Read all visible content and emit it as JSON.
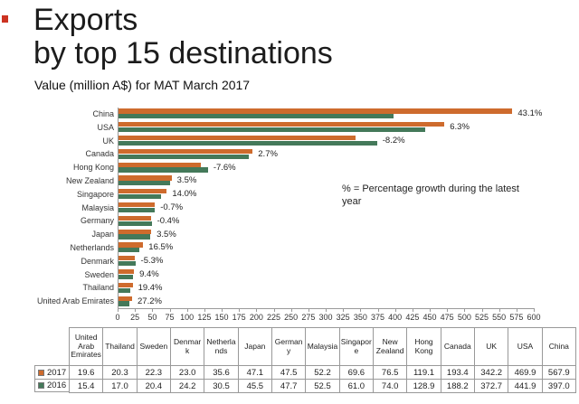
{
  "header": {
    "title_line1": "Exports",
    "title_line2": "by top 15 destinations",
    "subtitle": "Value (million A$) for MAT March 2017"
  },
  "annotation": "% = Percentage growth during the latest year",
  "colors": {
    "series_2017_orange": "#CE6B2D",
    "series_2016_green": "#44795A",
    "red_marker": "#CC3322",
    "axis_grey": "#9A9A9A",
    "table_border_grey": "#999999"
  },
  "chart_data": {
    "type": "bar",
    "orientation": "horizontal",
    "title": "Exports by top 15 destinations",
    "subtitle": "Value (million A$) for MAT March 2017",
    "xlabel": "",
    "ylabel": "",
    "xlim": [
      0,
      600
    ],
    "grid": false,
    "legend_position": "bottom-table",
    "x_ticks": [
      0,
      25,
      50,
      75,
      100,
      125,
      150,
      175,
      200,
      225,
      250,
      275,
      300,
      325,
      350,
      375,
      400,
      425,
      450,
      475,
      500,
      525,
      550,
      575,
      600
    ],
    "categories": [
      "China",
      "USA",
      "UK",
      "Canada",
      "Hong Kong",
      "New Zealand",
      "Singapore",
      "Malaysia",
      "Germany",
      "Japan",
      "Netherlands",
      "Denmark",
      "Sweden",
      "Thailand",
      "United Arab Emirates"
    ],
    "series": [
      {
        "name": "2017",
        "color": "#CE6B2D",
        "values": [
          567.9,
          469.9,
          342.2,
          193.4,
          119.1,
          76.5,
          69.6,
          52.2,
          47.5,
          47.1,
          35.6,
          23.0,
          22.3,
          20.3,
          19.6
        ]
      },
      {
        "name": "2016",
        "color": "#44795A",
        "values": [
          397.0,
          441.9,
          372.7,
          188.2,
          128.9,
          74.0,
          61.0,
          52.5,
          47.7,
          45.5,
          30.5,
          24.2,
          20.4,
          17.0,
          15.4
        ]
      }
    ],
    "growth_labels": [
      "43.1%",
      "6.3%",
      "-8.2%",
      "2.7%",
      "-7.6%",
      "3.5%",
      "14.0%",
      "-0.7%",
      "-0.4%",
      "3.5%",
      "16.5%",
      "-5.3%",
      "9.4%",
      "19.4%",
      "27.2%"
    ]
  },
  "table": {
    "columns": [
      "United Arab Emirates",
      "Thailand",
      "Sweden",
      "Denmark",
      "Netherlands",
      "Japan",
      "Germany",
      "Malaysia",
      "Singapore",
      "New Zealand",
      "Hong Kong",
      "Canada",
      "UK",
      "USA",
      "China"
    ],
    "rows": [
      {
        "label": "2017",
        "swatch_color": "#CE6B2D",
        "values": [
          "19.6",
          "20.3",
          "22.3",
          "23.0",
          "35.6",
          "47.1",
          "47.5",
          "52.2",
          "69.6",
          "76.5",
          "119.1",
          "193.4",
          "342.2",
          "469.9",
          "567.9"
        ]
      },
      {
        "label": "2016",
        "swatch_color": "#44795A",
        "values": [
          "15.4",
          "17.0",
          "20.4",
          "24.2",
          "30.5",
          "45.5",
          "47.7",
          "52.5",
          "61.0",
          "74.0",
          "128.9",
          "188.2",
          "372.7",
          "441.9",
          "397.0"
        ]
      }
    ]
  }
}
